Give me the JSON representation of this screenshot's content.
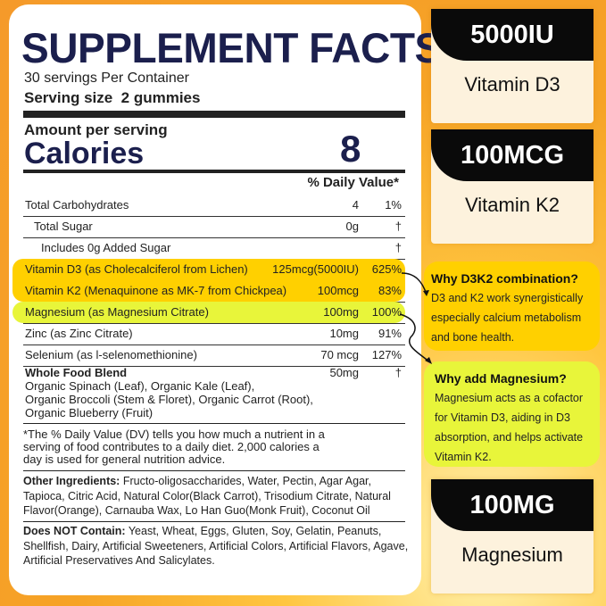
{
  "facts": {
    "title": "SUPPLEMENT FACTS",
    "servings": "30 servings Per Container",
    "serving_size": "Serving size  2 gummies",
    "amount_per_serving": "Amount per serving",
    "calories_label": "Calories",
    "calories_value": "8",
    "daily_value_header": "% Daily Value*",
    "rows": [
      {
        "name": "Total Carbohydrates",
        "amount": "4",
        "dv": "1%"
      },
      {
        "name": "Total Sugar",
        "amount": "0g",
        "dv": "†"
      },
      {
        "name": "Includes 0g Added Sugar",
        "amount": "",
        "dv": "†"
      },
      {
        "name": "Vitamin D3 (as Cholecalciferol from Lichen)",
        "amount": "125mcg(5000IU)",
        "dv": "625%"
      },
      {
        "name": "Vitamin K2 (Menaquinone as MK-7 from Chickpea)",
        "amount": "100mcg",
        "dv": "83%"
      },
      {
        "name": "Magnesium (as Magnesium Citrate)",
        "amount": "100mg",
        "dv": "100%"
      },
      {
        "name": "Zinc (as Zinc Citrate)",
        "amount": "10mg",
        "dv": "91%"
      },
      {
        "name": "Selenium (as l-selenomethionine)",
        "amount": "70 mcg",
        "dv": "127%"
      }
    ],
    "blend": {
      "name": "Whole Food Blend",
      "amount": "50mg",
      "dv": "†",
      "lines": [
        "Organic Spinach (Leaf), Organic Kale (Leaf),",
        "Organic Broccoli (Stem & Floret), Organic Carrot (Root),",
        "Organic Blueberry (Fruit)"
      ]
    },
    "footnote": [
      "*The % Daily Value (DV) tells you how much a nutrient in a",
      "serving of food contributes to a daily diet. 2,000 calories a",
      "day is used for general nutrition advice."
    ],
    "other_label": "Other Ingredients:",
    "other_text": "Fructo-oligosaccharides, Water, Pectin, Agar Agar, Tapioca, Citric Acid, Natural Color(Black Carrot), Trisodium Citrate, Natural Flavor(Orange), Carnauba Wax, Lo Han Guo(Monk Fruit), Coconut Oil",
    "not_label": "Does NOT Contain:",
    "not_text": "Yeast, Wheat, Eggs, Gluten, Soy, Gelatin, Peanuts, Shellfish, Dairy, Artificial Sweeteners, Artificial Colors, Artificial Flavors, Agave, Artificial Preservatives And Salicylates."
  },
  "cards": [
    {
      "value": "5000IU",
      "label": "Vitamin D3"
    },
    {
      "value": "100MCG",
      "label": "Vitamin K2"
    },
    {
      "value": "100MG",
      "label": "Magnesium"
    }
  ],
  "bubbles": [
    {
      "title": "Why D3K2 combination?",
      "text": "D3 and K2 work synergistically especially calcium metabolism and bone health."
    },
    {
      "title": "Why add Magnesium?",
      "text": "Magnesium acts as a cofactor for Vitamin D3, aiding in D3 absorption, and helps activate Vitamin K2."
    }
  ],
  "colors": {
    "title": "#1b1f4d",
    "highlight_vitamins": "#ffd000",
    "highlight_magnesium": "#e8f53a",
    "background": "#f6a326"
  }
}
